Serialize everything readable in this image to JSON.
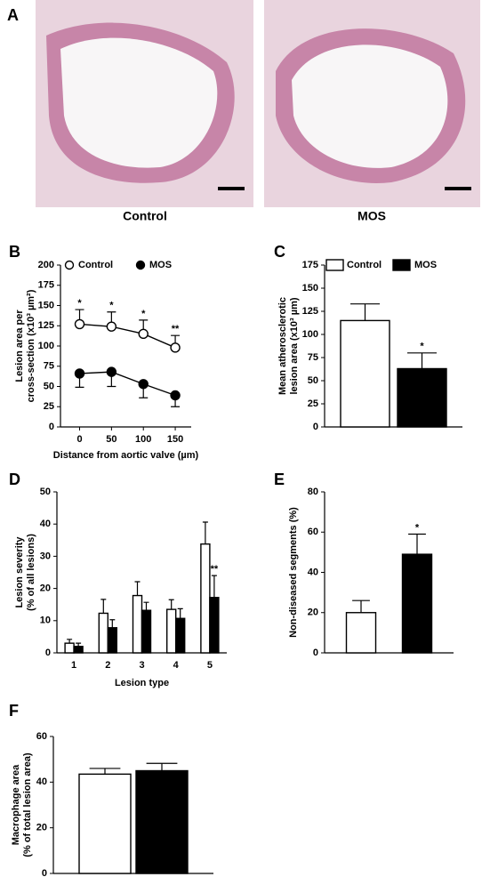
{
  "panel_a": {
    "label": "A",
    "captions": [
      "Control",
      "MOS"
    ]
  },
  "chart_data": [
    {
      "type": "line",
      "label": "B",
      "ylabel": [
        "Lesion area per",
        "cross-section (x10³ µm²)"
      ],
      "xlabel": "Distance from aortic valve (µm)",
      "x": [
        0,
        50,
        100,
        150
      ],
      "xlim": [
        -30,
        175
      ],
      "xticks": [
        0,
        50,
        100,
        150
      ],
      "ylim": [
        0,
        200
      ],
      "yticks": [
        0,
        25,
        50,
        75,
        100,
        125,
        150,
        175,
        200
      ],
      "legend": true,
      "series": [
        {
          "name": "Control",
          "color": "#ffffff",
          "values": [
            127,
            124,
            115,
            98
          ],
          "errors": [
            18,
            18,
            17,
            15
          ],
          "error_direction": "up",
          "significance": [
            "*",
            "*",
            "*",
            "**"
          ]
        },
        {
          "name": "MOS",
          "color": "#000000",
          "values": [
            66,
            68,
            53,
            39
          ],
          "errors": [
            17,
            18,
            17,
            14
          ],
          "error_direction": "down"
        }
      ]
    },
    {
      "type": "bar",
      "label": "C",
      "ylabel": [
        "Mean atherosclerotic",
        "lesion area (x10³ µm)"
      ],
      "ylim": [
        0,
        175
      ],
      "yticks": [
        0,
        25,
        50,
        75,
        100,
        125,
        150,
        175
      ],
      "legend": true,
      "series": [
        {
          "name": "Control",
          "color": "#ffffff",
          "values": [
            115
          ],
          "errors": [
            18
          ],
          "error_direction": "up"
        },
        {
          "name": "MOS",
          "color": "#000000",
          "values": [
            63
          ],
          "errors": [
            17
          ],
          "error_direction": "up",
          "significance": [
            "*"
          ]
        }
      ]
    },
    {
      "type": "bar",
      "label": "D",
      "ylabel": [
        "Lesion severity",
        "(% of all lesions)"
      ],
      "xlabel": "Lesion type",
      "categories": [
        "1",
        "2",
        "3",
        "4",
        "5"
      ],
      "ylim": [
        0,
        50
      ],
      "yticks": [
        0,
        10,
        20,
        30,
        40,
        50
      ],
      "legend": false,
      "series": [
        {
          "name": "Control",
          "color": "#ffffff",
          "values": [
            3,
            12.3,
            17.8,
            13.5,
            33.8
          ],
          "errors": [
            1.2,
            4.3,
            4.3,
            3,
            6.8
          ],
          "error_direction": "up"
        },
        {
          "name": "MOS",
          "color": "#000000",
          "values": [
            2,
            7.8,
            13.2,
            10.7,
            17.2
          ],
          "errors": [
            1,
            2.5,
            2.5,
            3,
            6.8
          ],
          "error_direction": "up",
          "significance": [
            null,
            null,
            null,
            null,
            "**"
          ]
        }
      ]
    },
    {
      "type": "bar",
      "label": "E",
      "ylabel": [
        "Non-diseased segments (%)"
      ],
      "ylim": [
        0,
        80
      ],
      "yticks": [
        0,
        20,
        40,
        60,
        80
      ],
      "legend": false,
      "series": [
        {
          "name": "Control",
          "color": "#ffffff",
          "values": [
            20
          ],
          "errors": [
            6
          ],
          "error_direction": "up"
        },
        {
          "name": "MOS",
          "color": "#000000",
          "values": [
            49
          ],
          "errors": [
            10
          ],
          "error_direction": "up",
          "significance": [
            "*"
          ]
        }
      ]
    },
    {
      "type": "bar",
      "label": "F",
      "ylabel": [
        "Macrophage area",
        "(% of total lesion area)"
      ],
      "ylim": [
        0,
        60
      ],
      "yticks": [
        0,
        20,
        40,
        60
      ],
      "legend": false,
      "series": [
        {
          "name": "Control",
          "color": "#ffffff",
          "values": [
            43.5
          ],
          "errors": [
            2.5
          ],
          "error_direction": "up"
        },
        {
          "name": "MOS",
          "color": "#000000",
          "values": [
            45
          ],
          "errors": [
            3.2
          ],
          "error_direction": "up"
        }
      ]
    }
  ]
}
